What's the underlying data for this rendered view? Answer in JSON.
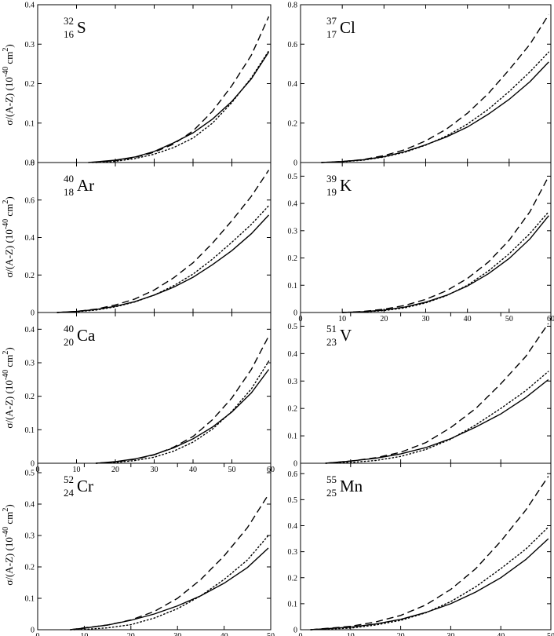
{
  "figure": {
    "ylabel": "σ/(A-Z) (10-40 cm2)"
  },
  "chart_data": [
    {
      "type": "line",
      "mass": "32",
      "charge": "16",
      "symbol": "S",
      "xlim": [
        0,
        60
      ],
      "ylim": [
        0,
        0.4
      ],
      "xticks": [
        0,
        10,
        20,
        30,
        40,
        50,
        60
      ],
      "xtick_labels": [],
      "yticks": [
        0,
        0.1,
        0.2,
        0.3,
        0.4
      ],
      "ytick_labels": [
        "0",
        "0.1",
        "0.2",
        "0.3",
        "0.4"
      ],
      "ylabel": "σ/(A-Z) (10-40 cm2)",
      "series": [
        {
          "style": "dashed",
          "x": [
            14,
            20,
            25,
            30,
            35,
            40,
            45,
            50,
            55,
            59.5
          ],
          "y": [
            0,
            0.005,
            0.013,
            0.026,
            0.047,
            0.08,
            0.13,
            0.195,
            0.272,
            0.37
          ]
        },
        {
          "style": "dotted",
          "x": [
            15,
            20,
            25,
            30,
            35,
            40,
            45,
            50,
            55,
            59.5
          ],
          "y": [
            0,
            0.003,
            0.01,
            0.021,
            0.038,
            0.062,
            0.1,
            0.152,
            0.215,
            0.283
          ]
        },
        {
          "style": "solid",
          "x": [
            13,
            20,
            25,
            30,
            35,
            40,
            45,
            50,
            55,
            59.5
          ],
          "y": [
            0,
            0.006,
            0.014,
            0.028,
            0.05,
            0.075,
            0.11,
            0.155,
            0.212,
            0.28
          ]
        }
      ]
    },
    {
      "type": "line",
      "mass": "37",
      "charge": "17",
      "symbol": "Cl",
      "xlim": [
        0,
        60
      ],
      "ylim": [
        0,
        0.8
      ],
      "xticks": [
        0,
        10,
        20,
        30,
        40,
        50,
        60
      ],
      "xtick_labels": [],
      "yticks": [
        0,
        0.2,
        0.4,
        0.6,
        0.8
      ],
      "ytick_labels": [
        "0",
        "0.2",
        "0.4",
        "0.6",
        "0.8"
      ],
      "ylabel": "",
      "series": [
        {
          "style": "dashed",
          "x": [
            5,
            10,
            15,
            20,
            25,
            30,
            35,
            40,
            45,
            50,
            55,
            59.5
          ],
          "y": [
            0,
            0.005,
            0.015,
            0.035,
            0.065,
            0.11,
            0.17,
            0.25,
            0.35,
            0.47,
            0.6,
            0.75
          ]
        },
        {
          "style": "dotted",
          "x": [
            5,
            10,
            15,
            20,
            25,
            30,
            35,
            40,
            45,
            50,
            55,
            59.5
          ],
          "y": [
            0,
            0.004,
            0.012,
            0.028,
            0.052,
            0.088,
            0.135,
            0.195,
            0.27,
            0.36,
            0.46,
            0.56
          ]
        },
        {
          "style": "solid",
          "x": [
            5,
            10,
            15,
            20,
            25,
            30,
            35,
            40,
            45,
            50,
            55,
            59.5
          ],
          "y": [
            0,
            0.005,
            0.014,
            0.03,
            0.055,
            0.09,
            0.13,
            0.18,
            0.245,
            0.32,
            0.41,
            0.51
          ]
        }
      ]
    },
    {
      "type": "line",
      "mass": "40",
      "charge": "18",
      "symbol": "Ar",
      "xlim": [
        0,
        60
      ],
      "ylim": [
        0,
        0.8
      ],
      "xticks": [
        0,
        10,
        20,
        30,
        40,
        50,
        60
      ],
      "xtick_labels": [],
      "yticks": [
        0,
        0.2,
        0.4,
        0.6,
        0.8
      ],
      "ytick_labels": [
        "0",
        "0.2",
        "0.4",
        "0.6",
        "0.8"
      ],
      "ylabel": "σ/(A-Z) (10-40 cm2)",
      "series": [
        {
          "style": "dashed",
          "x": [
            5,
            10,
            15,
            20,
            25,
            30,
            35,
            40,
            45,
            50,
            55,
            59.5
          ],
          "y": [
            0,
            0.006,
            0.018,
            0.04,
            0.072,
            0.12,
            0.185,
            0.265,
            0.37,
            0.49,
            0.62,
            0.76
          ]
        },
        {
          "style": "dotted",
          "x": [
            5,
            10,
            15,
            20,
            25,
            30,
            35,
            40,
            45,
            50,
            55,
            59.5
          ],
          "y": [
            0,
            0.004,
            0.013,
            0.03,
            0.056,
            0.093,
            0.143,
            0.205,
            0.285,
            0.375,
            0.47,
            0.57
          ]
        },
        {
          "style": "solid",
          "x": [
            5,
            10,
            15,
            20,
            25,
            30,
            35,
            40,
            45,
            50,
            55,
            59.5
          ],
          "y": [
            0,
            0.006,
            0.016,
            0.033,
            0.058,
            0.093,
            0.135,
            0.188,
            0.255,
            0.33,
            0.42,
            0.52
          ]
        }
      ]
    },
    {
      "type": "line",
      "mass": "39",
      "charge": "19",
      "symbol": "K",
      "xlim": [
        0,
        60
      ],
      "ylim": [
        0,
        0.55
      ],
      "xticks": [
        0,
        10,
        20,
        30,
        40,
        50,
        60
      ],
      "xtick_labels": [
        "0",
        "10",
        "20",
        "30",
        "40",
        "50",
        "60"
      ],
      "yticks": [
        0,
        0.1,
        0.2,
        0.3,
        0.4,
        0.5
      ],
      "ytick_labels": [
        "0",
        "0.1",
        "0.2",
        "0.3",
        "0.4",
        "0.5"
      ],
      "ylabel": "",
      "series": [
        {
          "style": "dashed",
          "x": [
            10,
            15,
            20,
            25,
            30,
            35,
            40,
            45,
            50,
            55,
            59.5
          ],
          "y": [
            0,
            0.004,
            0.012,
            0.026,
            0.048,
            0.08,
            0.125,
            0.185,
            0.265,
            0.37,
            0.5
          ]
        },
        {
          "style": "dotted",
          "x": [
            10,
            15,
            20,
            25,
            30,
            35,
            40,
            45,
            50,
            55,
            59.5
          ],
          "y": [
            0,
            0.002,
            0.007,
            0.017,
            0.035,
            0.062,
            0.1,
            0.152,
            0.215,
            0.29,
            0.37
          ]
        },
        {
          "style": "solid",
          "x": [
            10,
            15,
            20,
            25,
            30,
            35,
            40,
            45,
            50,
            55,
            59.5
          ],
          "y": [
            0,
            0.003,
            0.009,
            0.02,
            0.038,
            0.063,
            0.097,
            0.142,
            0.198,
            0.27,
            0.355
          ]
        }
      ]
    },
    {
      "type": "line",
      "mass": "40",
      "charge": "20",
      "symbol": "Ca",
      "xlim": [
        0,
        60
      ],
      "ylim": [
        0,
        0.45
      ],
      "xticks": [
        0,
        10,
        20,
        30,
        40,
        50,
        60
      ],
      "xtick_labels": [
        "0",
        "10",
        "20",
        "30",
        "40",
        "50",
        "60"
      ],
      "yticks": [
        0,
        0.1,
        0.2,
        0.3,
        0.4
      ],
      "ytick_labels": [
        "0",
        "0.1",
        "0.2",
        "0.3",
        "0.4"
      ],
      "ylabel": "σ/(A-Z) (10-40 cm2)",
      "series": [
        {
          "style": "dashed",
          "x": [
            15,
            20,
            25,
            30,
            35,
            40,
            45,
            50,
            55,
            59.5
          ],
          "y": [
            0,
            0.004,
            0.012,
            0.025,
            0.048,
            0.08,
            0.13,
            0.195,
            0.28,
            0.38
          ]
        },
        {
          "style": "dotted",
          "x": [
            15,
            20,
            25,
            30,
            35,
            40,
            45,
            50,
            55,
            59.5
          ],
          "y": [
            0,
            0.002,
            0.008,
            0.018,
            0.036,
            0.063,
            0.102,
            0.155,
            0.222,
            0.305
          ]
        },
        {
          "style": "solid",
          "x": [
            15,
            20,
            25,
            30,
            35,
            40,
            45,
            50,
            55,
            59.5
          ],
          "y": [
            0,
            0.005,
            0.013,
            0.026,
            0.046,
            0.073,
            0.108,
            0.153,
            0.21,
            0.28
          ]
        }
      ]
    },
    {
      "type": "line",
      "mass": "51",
      "charge": "23",
      "symbol": "V",
      "xlim": [
        0,
        50
      ],
      "ylim": [
        0,
        0.55
      ],
      "xticks": [
        0,
        10,
        20,
        30,
        40,
        50
      ],
      "xtick_labels": [],
      "yticks": [
        0,
        0.1,
        0.2,
        0.3,
        0.4,
        0.5
      ],
      "ytick_labels": [
        "0",
        "0.1",
        "0.2",
        "0.3",
        "0.4",
        "0.5"
      ],
      "ylabel": "",
      "series": [
        {
          "style": "dashed",
          "x": [
            5,
            10,
            15,
            20,
            25,
            30,
            35,
            40,
            45,
            49.5
          ],
          "y": [
            0,
            0.008,
            0.02,
            0.04,
            0.075,
            0.13,
            0.2,
            0.29,
            0.39,
            0.51
          ]
        },
        {
          "style": "dotted",
          "x": [
            5,
            10,
            15,
            20,
            25,
            30,
            35,
            40,
            45,
            49.5
          ],
          "y": [
            0,
            0.003,
            0.01,
            0.025,
            0.05,
            0.088,
            0.14,
            0.2,
            0.265,
            0.335
          ]
        },
        {
          "style": "solid",
          "x": [
            5,
            10,
            15,
            20,
            25,
            30,
            35,
            40,
            45,
            49.5
          ],
          "y": [
            0,
            0.008,
            0.018,
            0.034,
            0.057,
            0.09,
            0.132,
            0.18,
            0.24,
            0.305
          ]
        }
      ]
    },
    {
      "type": "line",
      "mass": "52",
      "charge": "24",
      "symbol": "Cr",
      "xlim": [
        0,
        50
      ],
      "ylim": [
        0,
        0.53
      ],
      "xticks": [
        0,
        10,
        20,
        30,
        40,
        50
      ],
      "xtick_labels": [
        "0",
        "10",
        "20",
        "30",
        "40",
        "50"
      ],
      "yticks": [
        0,
        0.1,
        0.2,
        0.3,
        0.4,
        0.5
      ],
      "ytick_labels": [
        "0",
        "0.1",
        "0.2",
        "0.3",
        "0.4",
        "0.5"
      ],
      "ylabel": "σ/(A-Z) (10-40 cm2)",
      "series": [
        {
          "style": "dashed",
          "x": [
            7,
            10,
            15,
            20,
            25,
            30,
            35,
            40,
            45,
            49.5
          ],
          "y": [
            0,
            0.006,
            0.015,
            0.031,
            0.058,
            0.1,
            0.16,
            0.235,
            0.325,
            0.43
          ]
        },
        {
          "style": "dotted",
          "x": [
            7,
            10,
            15,
            20,
            25,
            30,
            35,
            40,
            45,
            49.5
          ],
          "y": [
            0,
            0.001,
            0.006,
            0.016,
            0.037,
            0.067,
            0.108,
            0.16,
            0.222,
            0.3
          ]
        },
        {
          "style": "solid",
          "x": [
            7,
            10,
            15,
            20,
            25,
            30,
            35,
            40,
            45,
            49.5
          ],
          "y": [
            0,
            0.005,
            0.015,
            0.03,
            0.05,
            0.076,
            0.108,
            0.148,
            0.198,
            0.26
          ]
        }
      ]
    },
    {
      "type": "line",
      "mass": "55",
      "charge": "25",
      "symbol": "Mn",
      "xlim": [
        0,
        50
      ],
      "ylim": [
        0,
        0.64
      ],
      "xticks": [
        0,
        10,
        20,
        30,
        40,
        50
      ],
      "xtick_labels": [
        "0",
        "10",
        "20",
        "30",
        "40",
        "50"
      ],
      "yticks": [
        0,
        0.1,
        0.2,
        0.3,
        0.4,
        0.5,
        0.6
      ],
      "ytick_labels": [
        "0",
        "0.1",
        "0.2",
        "0.3",
        "0.4",
        "0.5",
        "0.6"
      ],
      "ylabel": "",
      "series": [
        {
          "style": "dashed",
          "x": [
            2,
            10,
            15,
            20,
            25,
            30,
            35,
            40,
            45,
            49.5
          ],
          "y": [
            0,
            0.013,
            0.03,
            0.055,
            0.095,
            0.155,
            0.235,
            0.34,
            0.46,
            0.59
          ]
        },
        {
          "style": "dotted",
          "x": [
            2,
            10,
            15,
            20,
            25,
            30,
            35,
            40,
            45,
            49.5
          ],
          "y": [
            0,
            0.006,
            0.018,
            0.036,
            0.065,
            0.108,
            0.165,
            0.235,
            0.31,
            0.395
          ]
        },
        {
          "style": "solid",
          "x": [
            2,
            10,
            15,
            20,
            25,
            30,
            35,
            40,
            45,
            49.5
          ],
          "y": [
            0,
            0.01,
            0.022,
            0.04,
            0.066,
            0.1,
            0.145,
            0.2,
            0.27,
            0.35
          ]
        }
      ]
    }
  ]
}
